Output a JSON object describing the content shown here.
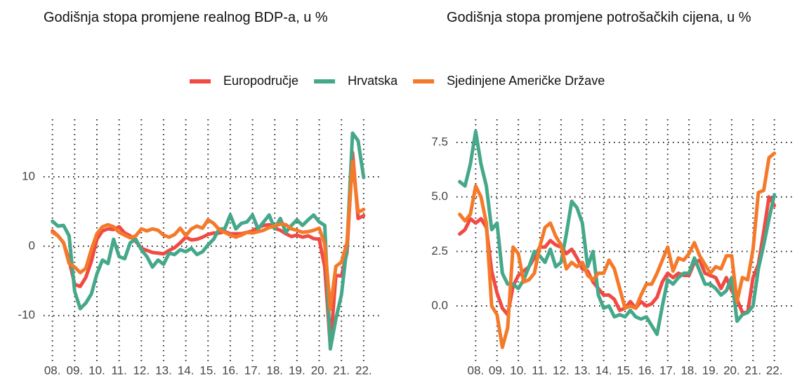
{
  "chart_data": [
    {
      "type": "line",
      "title": "Godišnja stopa promjene realnog BDP-a, u %",
      "legend": "top",
      "grid": true,
      "x": [
        8,
        8.25,
        8.5,
        8.75,
        9,
        9.25,
        9.5,
        9.75,
        10,
        10.25,
        10.5,
        10.75,
        11,
        11.25,
        11.5,
        11.75,
        12,
        12.25,
        12.5,
        12.75,
        13,
        13.25,
        13.5,
        13.75,
        14,
        14.25,
        14.5,
        14.75,
        15,
        15.25,
        15.5,
        15.75,
        16,
        16.25,
        16.5,
        16.75,
        17,
        17.25,
        17.5,
        17.75,
        18,
        18.25,
        18.5,
        18.75,
        19,
        19.25,
        19.5,
        19.75,
        20,
        20.25,
        20.5,
        20.75,
        21,
        21.25,
        21.5,
        21.75,
        22
      ],
      "xlim": [
        7.6,
        22.7
      ],
      "xticks": [
        {
          "value": 8,
          "label": "08."
        },
        {
          "value": 9,
          "label": "09."
        },
        {
          "value": 10,
          "label": "10."
        },
        {
          "value": 11,
          "label": "11."
        },
        {
          "value": 12,
          "label": "12."
        },
        {
          "value": 13,
          "label": "13."
        },
        {
          "value": 14,
          "label": "14."
        },
        {
          "value": 15,
          "label": "15."
        },
        {
          "value": 16,
          "label": "16."
        },
        {
          "value": 17,
          "label": "17."
        },
        {
          "value": 18,
          "label": "18."
        },
        {
          "value": 19,
          "label": "19."
        },
        {
          "value": 20,
          "label": "20."
        },
        {
          "value": 21,
          "label": "21."
        },
        {
          "value": 22,
          "label": "22."
        }
      ],
      "ylim": [
        -16.6,
        18.3
      ],
      "yticks": [
        -10,
        0,
        10
      ],
      "series": [
        {
          "name": "Europodručje",
          "color": "#f04a43",
          "values": [
            2.2,
            1.5,
            0.5,
            -2.0,
            -5.5,
            -5.8,
            -4.5,
            -2.2,
            1.0,
            2.2,
            2.5,
            2.4,
            2.8,
            1.9,
            1.5,
            0.7,
            -0.3,
            -0.6,
            -0.9,
            -1.0,
            -1.1,
            -0.6,
            -0.2,
            0.5,
            1.3,
            0.9,
            1.0,
            1.3,
            1.7,
            1.9,
            1.9,
            2.1,
            1.8,
            1.8,
            1.8,
            2.0,
            2.2,
            2.7,
            3.0,
            3.1,
            2.6,
            2.3,
            1.8,
            1.4,
            1.6,
            1.3,
            1.5,
            1.1,
            1.0,
            -3.0,
            -14.5,
            -4.2,
            -4.3,
            -0.9,
            13.5,
            4.0,
            4.4
          ]
        },
        {
          "name": "Hrvatska",
          "color": "#45a88a",
          "values": [
            3.6,
            2.9,
            3.0,
            1.5,
            -6.5,
            -9.0,
            -8.2,
            -6.9,
            -4.0,
            -2.0,
            -2.5,
            1.0,
            -1.5,
            -1.8,
            0.5,
            1.0,
            -0.5,
            -1.5,
            -3.0,
            -2.0,
            -2.6,
            -1.0,
            -1.2,
            -0.5,
            -0.8,
            -0.3,
            -1.2,
            -0.8,
            0.2,
            1.0,
            2.5,
            2.5,
            4.5,
            2.5,
            3.3,
            3.5,
            4.5,
            2.5,
            3.5,
            4.5,
            2.5,
            4.0,
            2.0,
            3.0,
            3.8,
            3.0,
            3.8,
            4.5,
            3.5,
            3.0,
            -14.8,
            -10.5,
            -7.0,
            0.0,
            16.3,
            15.2,
            9.9
          ]
        },
        {
          "name": "Sjedinjene Američke Države",
          "color": "#f47a2a",
          "values": [
            2.0,
            1.5,
            0.5,
            -2.5,
            -3.0,
            -3.8,
            -3.2,
            -0.5,
            1.8,
            2.8,
            3.1,
            2.8,
            2.0,
            1.6,
            1.2,
            1.5,
            2.5,
            2.2,
            2.5,
            2.3,
            1.6,
            1.3,
            1.7,
            2.6,
            1.5,
            2.5,
            2.9,
            2.6,
            3.8,
            3.3,
            2.4,
            2.0,
            1.6,
            1.3,
            1.6,
            2.0,
            1.9,
            2.1,
            2.3,
            2.7,
            2.9,
            3.2,
            3.1,
            2.5,
            2.3,
            2.0,
            2.1,
            2.3,
            2.6,
            0.3,
            -9.1,
            -2.9,
            -2.3,
            0.5,
            12.2,
            4.9,
            5.3
          ]
        }
      ]
    },
    {
      "type": "line",
      "title": "Godišnja stopa promjene potrošačkih cijena, u %",
      "grid": true,
      "x": [
        7.25,
        7.5,
        7.75,
        8,
        8.25,
        8.5,
        8.75,
        9,
        9.25,
        9.5,
        9.75,
        10,
        10.25,
        10.5,
        10.75,
        11,
        11.25,
        11.5,
        11.75,
        12,
        12.25,
        12.5,
        12.75,
        13,
        13.25,
        13.5,
        13.75,
        14,
        14.25,
        14.5,
        14.75,
        15,
        15.25,
        15.5,
        15.75,
        16,
        16.25,
        16.5,
        16.75,
        17,
        17.25,
        17.5,
        17.75,
        18,
        18.25,
        18.5,
        18.75,
        19,
        19.25,
        19.5,
        19.75,
        20,
        20.25,
        20.5,
        20.75,
        21,
        21.25,
        21.5,
        21.75,
        22
      ],
      "xlim": [
        7.1,
        22.9
      ],
      "xticks": [
        {
          "value": 8,
          "label": "08."
        },
        {
          "value": 9,
          "label": "09."
        },
        {
          "value": 10,
          "label": "10."
        },
        {
          "value": 11,
          "label": "11."
        },
        {
          "value": 12,
          "label": "12."
        },
        {
          "value": 13,
          "label": "13."
        },
        {
          "value": 14,
          "label": "14."
        },
        {
          "value": 15,
          "label": "15."
        },
        {
          "value": 16,
          "label": "16."
        },
        {
          "value": 17,
          "label": "17."
        },
        {
          "value": 18,
          "label": "18."
        },
        {
          "value": 19,
          "label": "19."
        },
        {
          "value": 20,
          "label": "20."
        },
        {
          "value": 21,
          "label": "21."
        },
        {
          "value": 22,
          "label": "22."
        }
      ],
      "ylim": [
        -2.54,
        8.56
      ],
      "yticks": [
        {
          "value": 0,
          "label": "0.0"
        },
        2.5,
        {
          "value": 5,
          "label": "5.0"
        },
        7.5
      ],
      "series": [
        {
          "color": "#f04a43",
          "values": [
            3.3,
            3.5,
            4.0,
            3.8,
            4.0,
            3.6,
            1.6,
            0.6,
            -0.1,
            -0.4,
            0.9,
            1.4,
            1.6,
            1.8,
            2.2,
            2.7,
            2.7,
            3.0,
            2.8,
            2.7,
            2.4,
            2.6,
            2.2,
            1.7,
            1.6,
            1.1,
            0.8,
            0.5,
            0.5,
            0.3,
            -0.2,
            -0.1,
            0.2,
            -0.1,
            0.2,
            0.0,
            0.1,
            0.4,
            1.1,
            1.5,
            1.3,
            1.5,
            1.4,
            1.4,
            2.0,
            2.1,
            1.5,
            1.4,
            1.3,
            0.8,
            1.3,
            0.7,
            0.3,
            -0.3,
            -0.3,
            1.3,
            1.9,
            3.4,
            5.0,
            4.6
          ]
        },
        {
          "color": "#45a88a",
          "values": [
            5.7,
            5.5,
            6.5,
            8.0,
            6.5,
            5.5,
            3.5,
            3.8,
            1.5,
            1.0,
            1.0,
            0.8,
            1.2,
            1.8,
            2.5,
            2.3,
            2.0,
            2.6,
            1.8,
            2.0,
            3.3,
            4.8,
            4.5,
            3.8,
            1.8,
            2.5,
            0.5,
            -0.1,
            0.0,
            -0.5,
            -0.4,
            -0.5,
            -0.2,
            -0.5,
            -0.6,
            -0.5,
            -0.9,
            -1.3,
            0.0,
            1.2,
            1.0,
            1.3,
            1.5,
            1.5,
            2.2,
            1.6,
            1.0,
            1.0,
            0.8,
            0.5,
            0.7,
            1.3,
            -0.7,
            -0.4,
            -0.3,
            0.0,
            1.7,
            2.8,
            4.0,
            5.1
          ]
        },
        {
          "color": "#f47a2a",
          "values": [
            4.2,
            3.9,
            4.2,
            5.5,
            5.0,
            3.8,
            0.0,
            -0.4,
            -1.9,
            -1.0,
            2.7,
            2.4,
            1.1,
            1.2,
            1.5,
            2.7,
            3.6,
            3.8,
            3.2,
            2.8,
            1.7,
            2.0,
            1.8,
            2.0,
            1.4,
            1.2,
            1.5,
            1.5,
            2.1,
            1.7,
            0.8,
            -0.1,
            0.0,
            -0.1,
            0.5,
            1.0,
            1.0,
            1.5,
            2.1,
            2.7,
            1.6,
            2.2,
            2.1,
            2.4,
            2.9,
            2.3,
            1.9,
            1.5,
            1.8,
            1.7,
            2.3,
            2.3,
            0.2,
            1.3,
            1.2,
            2.6,
            5.2,
            5.3,
            6.8,
            7.0
          ]
        }
      ]
    }
  ]
}
